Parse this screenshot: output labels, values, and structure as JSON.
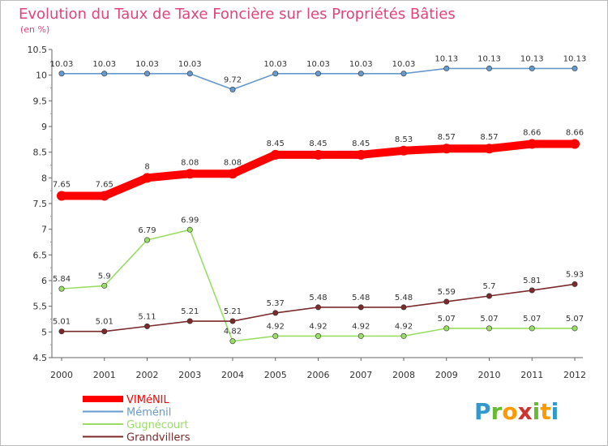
{
  "chart_data": {
    "type": "line",
    "title": "Evolution du Taux de Taxe Foncière sur les Propriétés Bâties",
    "subtitle": "(en %)",
    "xlabel": "",
    "ylabel": "",
    "x": [
      "2000",
      "2001",
      "2002",
      "2003",
      "2004",
      "2005",
      "2006",
      "2007",
      "2008",
      "2009",
      "2010",
      "2011",
      "2012"
    ],
    "ylim": [
      4.5,
      10.5
    ],
    "yticks": [
      "4.5",
      "5",
      "5.5",
      "6",
      "6.5",
      "7",
      "7.5",
      "8",
      "8.5",
      "9",
      "9.5",
      "10",
      "10.5"
    ],
    "grid": false,
    "legend_position": "bottom-left",
    "series": [
      {
        "name": "VIMéNIL",
        "color": "#ff0000",
        "values": [
          7.65,
          7.65,
          8,
          8.08,
          8.08,
          8.45,
          8.45,
          8.45,
          8.53,
          8.57,
          8.57,
          8.66,
          8.66
        ],
        "labels": [
          "7.65",
          "7.65",
          "8",
          "8.08",
          "8.08",
          "8.45",
          "8.45",
          "8.45",
          "8.53",
          "8.57",
          "8.57",
          "8.66",
          "8.66"
        ]
      },
      {
        "name": "Méménil",
        "color": "#6699cc",
        "values": [
          10.03,
          10.03,
          10.03,
          10.03,
          9.72,
          10.03,
          10.03,
          10.03,
          10.03,
          10.13,
          10.13,
          10.13,
          10.13
        ],
        "labels": [
          "10.03",
          "10.03",
          "10.03",
          "10.03",
          "9.72",
          "10.03",
          "10.03",
          "10.03",
          "10.03",
          "10.13",
          "10.13",
          "10.13",
          "10.13"
        ]
      },
      {
        "name": "Gugnécourt",
        "color": "#99dd66",
        "values": [
          5.84,
          5.9,
          6.79,
          6.99,
          4.82,
          4.92,
          4.92,
          4.92,
          4.92,
          5.07,
          5.07,
          5.07,
          5.07
        ],
        "labels": [
          "5.84",
          "5.9",
          "6.79",
          "6.99",
          "4.82",
          "4.92",
          "4.92",
          "4.92",
          "4.92",
          "5.07",
          "5.07",
          "5.07",
          "5.07"
        ]
      },
      {
        "name": "Grandvillers",
        "color": "#7a2a2a",
        "values": [
          5.01,
          5.01,
          5.11,
          5.21,
          5.21,
          5.37,
          5.48,
          5.48,
          5.48,
          5.59,
          5.7,
          5.81,
          5.93
        ],
        "labels": [
          "5.01",
          "5.01",
          "5.11",
          "5.21",
          "5.21",
          "5.37",
          "5.48",
          "5.48",
          "5.48",
          "5.59",
          "5.7",
          "5.81",
          "5.93"
        ]
      }
    ]
  },
  "brand": {
    "letters": [
      "P",
      "r",
      "o",
      "x",
      "i",
      "t",
      "i"
    ],
    "colors": [
      "#3399cc",
      "#66bb33",
      "#ff9900",
      "#cc3333",
      "#66bb33",
      "#ff9900",
      "#3399cc"
    ]
  }
}
